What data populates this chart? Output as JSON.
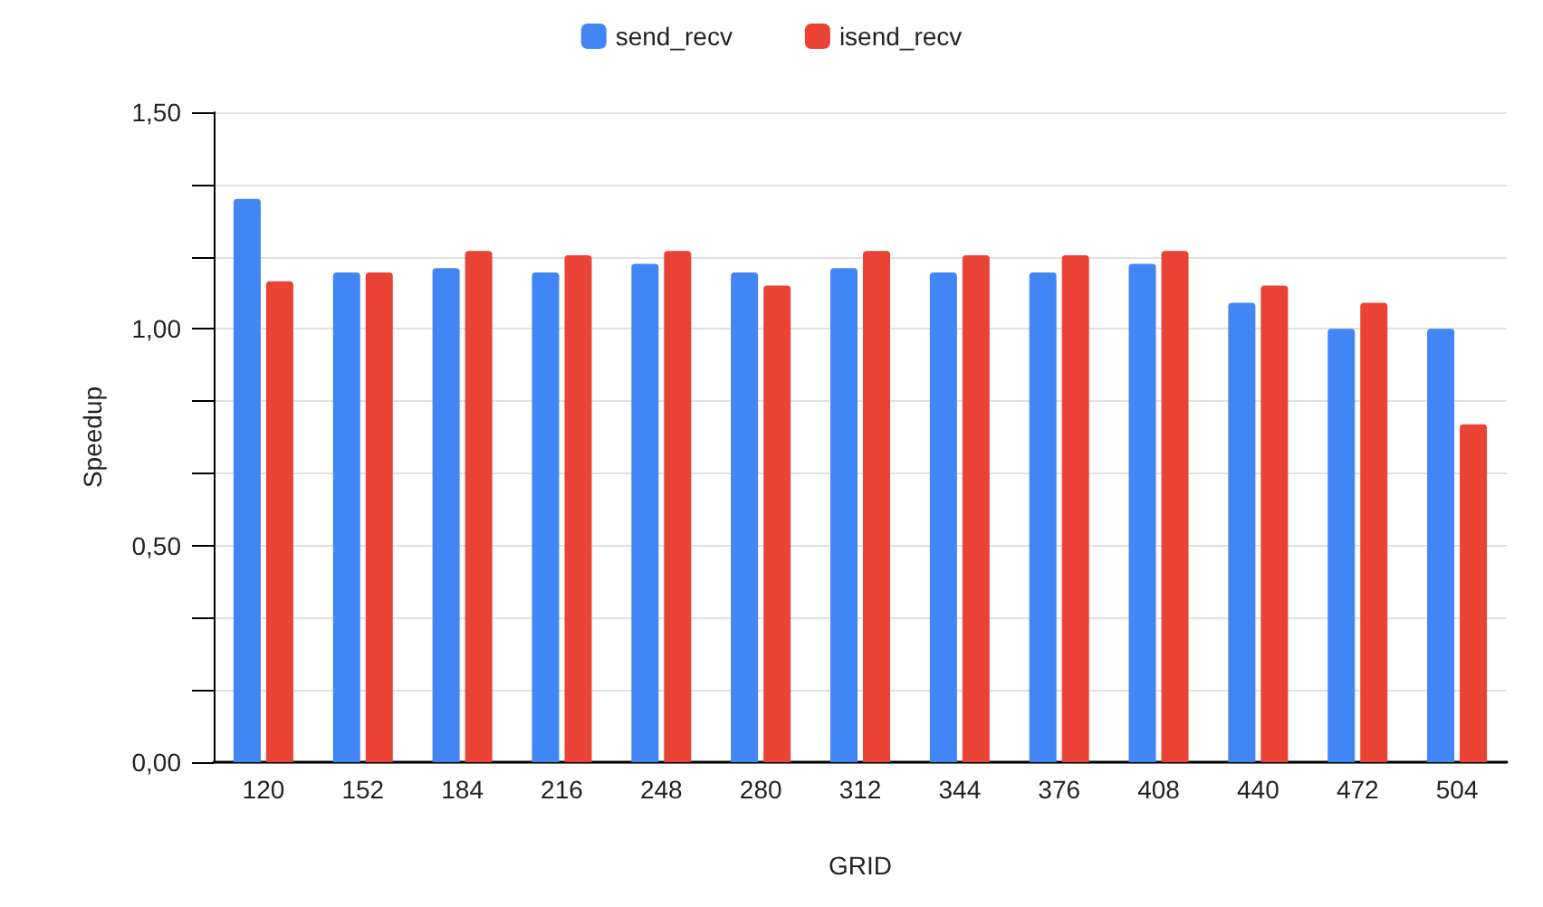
{
  "chart_data": {
    "type": "bar",
    "xlabel": "GRID",
    "ylabel": "Speedup",
    "categories": [
      "120",
      "152",
      "184",
      "216",
      "248",
      "280",
      "312",
      "344",
      "376",
      "408",
      "440",
      "472",
      "504"
    ],
    "series": [
      {
        "name": "send_recv",
        "color": "#4285f4",
        "values": [
          1.3,
          1.13,
          1.14,
          1.13,
          1.15,
          1.13,
          1.14,
          1.13,
          1.13,
          1.15,
          1.06,
          1.0,
          1.0
        ]
      },
      {
        "name": "isend_recv",
        "color": "#ea4335",
        "values": [
          1.11,
          1.13,
          1.18,
          1.17,
          1.18,
          1.1,
          1.18,
          1.17,
          1.17,
          1.18,
          1.1,
          1.06,
          0.78
        ]
      }
    ],
    "ylim": [
      0,
      1.5
    ],
    "yticks": [
      {
        "value": 0,
        "label": "0,00"
      },
      {
        "value": 0.1667,
        "label": null
      },
      {
        "value": 0.3333,
        "label": null
      },
      {
        "value": 0.5,
        "label": "0,50"
      },
      {
        "value": 0.6667,
        "label": null
      },
      {
        "value": 0.8333,
        "label": null
      },
      {
        "value": 1,
        "label": "1,00"
      },
      {
        "value": 1.1667,
        "label": null
      },
      {
        "value": 1.3333,
        "label": null
      },
      {
        "value": 1.5,
        "label": "1,50"
      }
    ],
    "grid": true,
    "legend": "top"
  }
}
